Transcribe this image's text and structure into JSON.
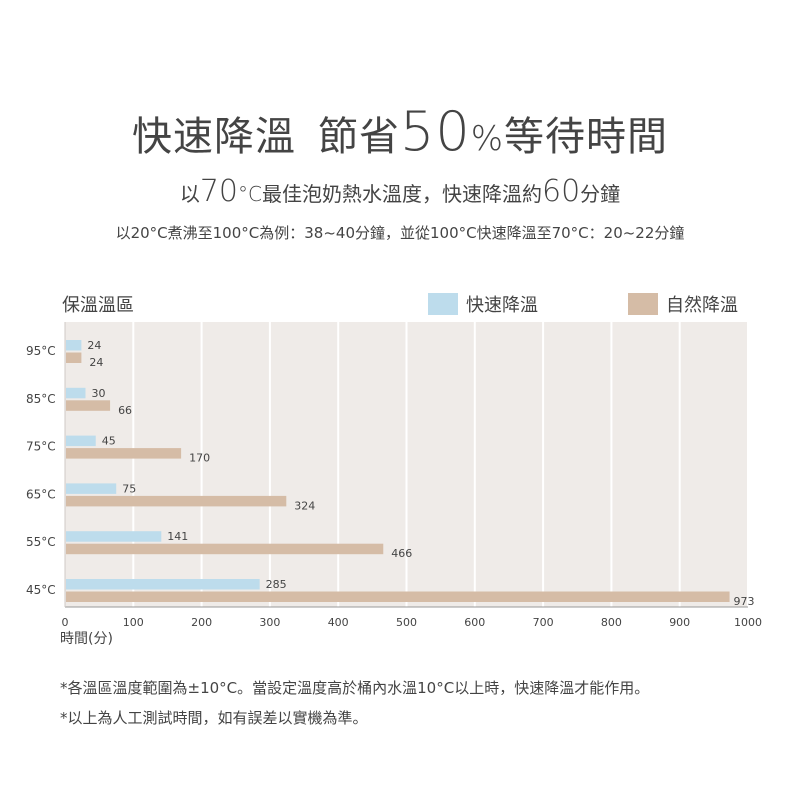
{
  "header": {
    "title_part1": "快速降溫",
    "title_part2": "節省",
    "title_number": "50",
    "title_percent": "%",
    "title_part3": "等待時間"
  },
  "subheader": {
    "prefix": "以",
    "temp_number": "70",
    "temp_unit": "°C",
    "middle": "最佳泡奶熱水溫度，快速降溫約",
    "minutes_number": "60",
    "suffix": "分鐘"
  },
  "note": "以20°C煮沸至100°C為例：38~40分鐘，並從100°C快速降溫至70°C：20~22分鐘",
  "chart_data": {
    "type": "bar",
    "orientation": "horizontal",
    "title": "保溫溫區",
    "categories": [
      "95°C",
      "85°C",
      "75°C",
      "65°C",
      "55°C",
      "45°C"
    ],
    "series": [
      {
        "name": "快速降溫",
        "color": "#bddcec",
        "values": [
          24,
          30,
          45,
          75,
          141,
          285
        ]
      },
      {
        "name": "自然降溫",
        "color": "#d5bca6",
        "values": [
          24,
          66,
          170,
          324,
          466,
          973
        ]
      }
    ],
    "xlabel": "時間(分)",
    "xlim": [
      0,
      1000
    ],
    "xticks": [
      0,
      100,
      200,
      300,
      400,
      500,
      600,
      700,
      800,
      900,
      1000
    ],
    "grid": true,
    "legend": "top-right",
    "plot_background": "#efebe8"
  },
  "footnotes": [
    "*各溫區溫度範圍為±10°C。當設定溫度高於桶內水溫10°C以上時，快速降溫才能作用。",
    "*以上為人工測試時間，如有誤差以實機為準。"
  ]
}
